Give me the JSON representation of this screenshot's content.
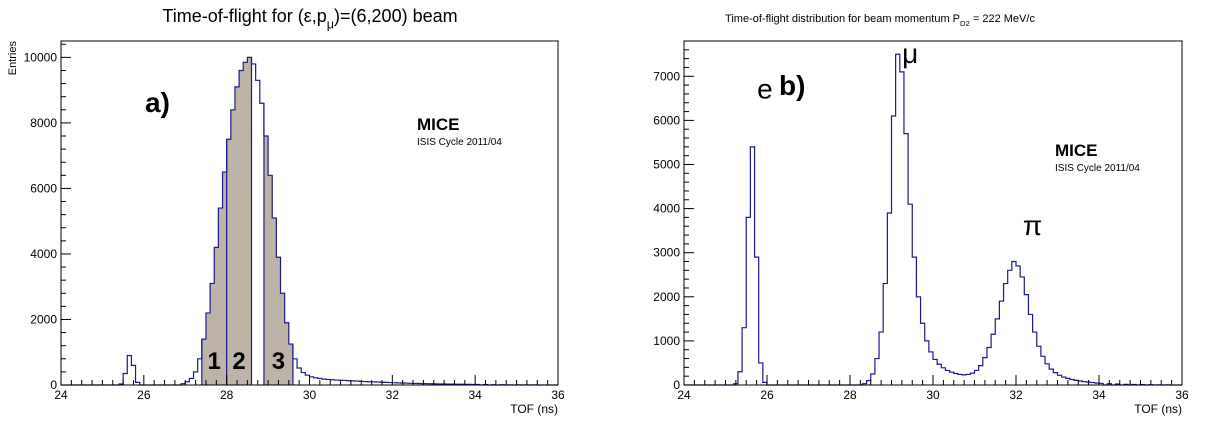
{
  "chart_data": [
    {
      "type": "histogram",
      "title": "Time-of-flight for (ε,p",
      "title_sub": "μ",
      "title_tail": ")=(6,200) beam",
      "xlabel": "TOF (ns)",
      "ylabel": "Entries",
      "xlim": [
        24,
        36
      ],
      "ylim": [
        0,
        10500
      ],
      "xticks": [
        "24",
        "26",
        "28",
        "30",
        "32",
        "34",
        "36"
      ],
      "yticks": [
        "0",
        "2000",
        "4000",
        "6000",
        "8000",
        "10000"
      ],
      "panel_label": "a)",
      "experiment": "MICE",
      "run": "ISIS Cycle 2011/04",
      "bin_width": 0.1,
      "bins": [
        [
          25.4,
          30
        ],
        [
          25.5,
          350
        ],
        [
          25.6,
          900
        ],
        [
          25.7,
          600
        ],
        [
          25.8,
          80
        ],
        [
          26.9,
          40
        ],
        [
          27.0,
          100
        ],
        [
          27.1,
          200
        ],
        [
          27.2,
          400
        ],
        [
          27.3,
          800
        ],
        [
          27.4,
          1400
        ],
        [
          27.5,
          2200
        ],
        [
          27.6,
          3100
        ],
        [
          27.7,
          4200
        ],
        [
          27.8,
          5400
        ],
        [
          27.9,
          6500
        ],
        [
          28.0,
          7500
        ],
        [
          28.1,
          8400
        ],
        [
          28.2,
          9100
        ],
        [
          28.3,
          9600
        ],
        [
          28.4,
          9850
        ],
        [
          28.5,
          10000
        ],
        [
          28.6,
          9800
        ],
        [
          28.7,
          9300
        ],
        [
          28.8,
          8600
        ],
        [
          28.9,
          7600
        ],
        [
          29.0,
          6400
        ],
        [
          29.1,
          5100
        ],
        [
          29.2,
          3900
        ],
        [
          29.3,
          2800
        ],
        [
          29.4,
          1900
        ],
        [
          29.5,
          1250
        ],
        [
          29.6,
          800
        ],
        [
          29.7,
          520
        ],
        [
          29.8,
          380
        ],
        [
          29.9,
          300
        ],
        [
          30.0,
          250
        ],
        [
          30.1,
          220
        ],
        [
          30.2,
          200
        ],
        [
          30.3,
          180
        ],
        [
          30.4,
          170
        ],
        [
          30.5,
          160
        ],
        [
          30.6,
          150
        ],
        [
          30.7,
          145
        ],
        [
          30.8,
          140
        ],
        [
          30.9,
          130
        ],
        [
          31.0,
          125
        ],
        [
          31.1,
          120
        ],
        [
          31.2,
          110
        ],
        [
          31.3,
          105
        ],
        [
          31.4,
          100
        ],
        [
          31.5,
          95
        ],
        [
          31.6,
          90
        ],
        [
          31.7,
          85
        ],
        [
          31.8,
          80
        ],
        [
          31.9,
          75
        ],
        [
          32.0,
          70
        ],
        [
          32.1,
          65
        ],
        [
          32.2,
          60
        ],
        [
          32.3,
          55
        ],
        [
          32.4,
          52
        ],
        [
          32.5,
          48
        ],
        [
          32.6,
          45
        ],
        [
          32.7,
          42
        ],
        [
          32.8,
          40
        ],
        [
          32.9,
          38
        ],
        [
          33.0,
          35
        ],
        [
          33.1,
          33
        ],
        [
          33.2,
          30
        ],
        [
          33.3,
          28
        ],
        [
          33.4,
          26
        ],
        [
          33.5,
          24
        ],
        [
          33.6,
          22
        ],
        [
          33.7,
          20
        ],
        [
          33.8,
          18
        ],
        [
          33.9,
          16
        ],
        [
          34.0,
          15
        ],
        [
          34.2,
          12
        ],
        [
          34.4,
          10
        ],
        [
          34.6,
          8
        ],
        [
          34.8,
          6
        ],
        [
          35.0,
          5
        ],
        [
          35.2,
          4
        ],
        [
          35.4,
          3
        ],
        [
          35.6,
          2
        ],
        [
          35.8,
          1
        ]
      ],
      "bands": [
        {
          "label": "1",
          "from": 27.4,
          "to": 28.0
        },
        {
          "label": "2",
          "from": 28.0,
          "to": 28.6
        },
        {
          "label": "3",
          "from": 28.9,
          "to": 29.6
        }
      ]
    },
    {
      "type": "histogram",
      "title": "Time-of-flight distribution for beam momentum  P",
      "title_sub": "D2",
      "title_tail": " = 222 MeV/c",
      "xlabel": "TOF (ns)",
      "ylabel": "",
      "xlim": [
        24,
        36
      ],
      "ylim": [
        0,
        7800
      ],
      "xticks": [
        "24",
        "26",
        "28",
        "30",
        "32",
        "34",
        "36"
      ],
      "yticks": [
        "0",
        "1000",
        "2000",
        "3000",
        "4000",
        "5000",
        "6000",
        "7000"
      ],
      "panel_label": "b)",
      "experiment": "MICE",
      "run": "ISIS Cycle 2011/04",
      "bin_width": 0.1,
      "bins": [
        [
          25.2,
          30
        ],
        [
          25.3,
          300
        ],
        [
          25.4,
          1300
        ],
        [
          25.5,
          3800
        ],
        [
          25.6,
          5400
        ],
        [
          25.7,
          2900
        ],
        [
          25.8,
          500
        ],
        [
          25.9,
          60
        ],
        [
          28.3,
          30
        ],
        [
          28.4,
          100
        ],
        [
          28.5,
          250
        ],
        [
          28.6,
          600
        ],
        [
          28.7,
          1200
        ],
        [
          28.8,
          2300
        ],
        [
          28.9,
          3900
        ],
        [
          29.0,
          6100
        ],
        [
          29.1,
          7500
        ],
        [
          29.2,
          7100
        ],
        [
          29.3,
          5700
        ],
        [
          29.4,
          4100
        ],
        [
          29.5,
          2900
        ],
        [
          29.6,
          2000
        ],
        [
          29.7,
          1400
        ],
        [
          29.8,
          1000
        ],
        [
          29.9,
          750
        ],
        [
          30.0,
          580
        ],
        [
          30.1,
          470
        ],
        [
          30.2,
          390
        ],
        [
          30.3,
          330
        ],
        [
          30.4,
          290
        ],
        [
          30.5,
          260
        ],
        [
          30.6,
          240
        ],
        [
          30.7,
          230
        ],
        [
          30.8,
          240
        ],
        [
          30.9,
          270
        ],
        [
          31.0,
          330
        ],
        [
          31.1,
          440
        ],
        [
          31.2,
          620
        ],
        [
          31.3,
          850
        ],
        [
          31.4,
          1150
        ],
        [
          31.5,
          1500
        ],
        [
          31.6,
          1900
        ],
        [
          31.7,
          2300
        ],
        [
          31.8,
          2600
        ],
        [
          31.9,
          2800
        ],
        [
          32.0,
          2700
        ],
        [
          32.1,
          2450
        ],
        [
          32.2,
          2050
        ],
        [
          32.3,
          1600
        ],
        [
          32.4,
          1200
        ],
        [
          32.5,
          880
        ],
        [
          32.6,
          650
        ],
        [
          32.7,
          480
        ],
        [
          32.8,
          360
        ],
        [
          32.9,
          280
        ],
        [
          33.0,
          220
        ],
        [
          33.1,
          180
        ],
        [
          33.2,
          150
        ],
        [
          33.3,
          125
        ],
        [
          33.4,
          105
        ],
        [
          33.5,
          90
        ],
        [
          33.6,
          75
        ],
        [
          33.7,
          65
        ],
        [
          33.8,
          55
        ],
        [
          33.9,
          45
        ],
        [
          34.0,
          38
        ],
        [
          34.2,
          30
        ],
        [
          34.4,
          22
        ],
        [
          34.6,
          16
        ],
        [
          34.8,
          12
        ],
        [
          35.0,
          9
        ],
        [
          35.2,
          6
        ],
        [
          35.4,
          4
        ],
        [
          35.6,
          2
        ]
      ],
      "particle_labels": [
        {
          "text": "e",
          "x": 25.95,
          "y": 6500
        },
        {
          "text": "μ",
          "x": 29.45,
          "y": 7300
        },
        {
          "text": "π",
          "x": 32.4,
          "y": 3400
        }
      ]
    }
  ]
}
